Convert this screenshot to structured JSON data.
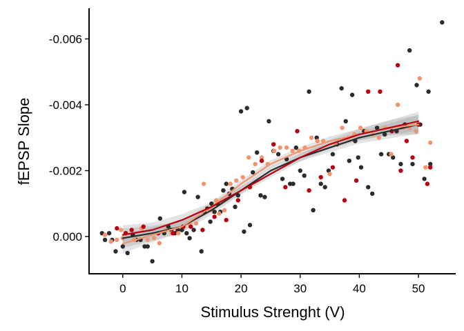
{
  "chart_data": {
    "type": "scatter",
    "title": "",
    "xlabel": "Stimulus Strenght (V)",
    "ylabel": "fEPSP Slope",
    "x_ticks": [
      0,
      10,
      20,
      30,
      40,
      50
    ],
    "x_tick_labels": [
      "0",
      "10",
      "20",
      "30",
      "40",
      "50"
    ],
    "y_ticks": [
      0,
      -0.002,
      -0.004,
      -0.006
    ],
    "y_tick_labels": [
      "0.000",
      "-0.002",
      "-0.004",
      "-0.006"
    ],
    "xlim": [
      -5.7,
      56.3
    ],
    "ylim": [
      0.00113,
      -0.00693
    ],
    "y_reversed": true,
    "grid": false,
    "legend": "none",
    "series": [
      {
        "color": "#2b2b2b",
        "points": [
          [
            -3.5,
            -0.0001
          ],
          [
            -3,
            0.0001
          ],
          [
            -2.3,
            -0.0001
          ],
          [
            -1.8,
            0.0001
          ],
          [
            -1.2,
            0.00045
          ],
          [
            0,
            0.0003
          ],
          [
            0.8,
            0.0005
          ],
          [
            1.7,
            -5e-05
          ],
          [
            2.3,
            0.0001
          ],
          [
            3,
            0.0001
          ],
          [
            3.7,
            0.0003
          ],
          [
            4.2,
            0.0003
          ],
          [
            5,
            0.00075
          ],
          [
            6.3,
            -0.00055
          ],
          [
            7,
            -0.0001
          ],
          [
            7.7,
            -0.0003
          ],
          [
            8.2,
            -0.0002
          ],
          [
            8.8,
            -0.0001
          ],
          [
            9.3,
            -0.0002
          ],
          [
            10,
            -0.0002
          ],
          [
            10.4,
            -0.00135
          ],
          [
            10.8,
            -0.0001
          ],
          [
            11.3,
            5e-05
          ],
          [
            12,
            -0.0002
          ],
          [
            12.7,
            -0.0012
          ],
          [
            13.3,
            0.00045
          ],
          [
            13.8,
            -0.00075
          ],
          [
            14.3,
            -0.00085
          ],
          [
            14.8,
            -0.00045
          ],
          [
            15,
            -0.001
          ],
          [
            15.5,
            -0.00075
          ],
          [
            16,
            -0.001
          ],
          [
            16.5,
            -0.00075
          ],
          [
            17,
            -0.0014
          ],
          [
            17.5,
            -0.0016
          ],
          [
            18,
            -0.0013
          ],
          [
            18.5,
            -0.00145
          ],
          [
            19,
            -0.0009
          ],
          [
            19.5,
            -0.00125
          ],
          [
            20,
            -0.0038
          ],
          [
            20.5,
            -0.00015
          ],
          [
            21,
            -0.0039
          ],
          [
            21.5,
            -0.00035
          ],
          [
            22,
            -0.00195
          ],
          [
            22.7,
            -0.00255
          ],
          [
            23.3,
            -0.00125
          ],
          [
            24,
            -0.0012
          ],
          [
            24.7,
            -0.0035
          ],
          [
            25.5,
            -0.0026
          ],
          [
            26.3,
            -0.0025
          ],
          [
            27,
            -0.00175
          ],
          [
            27.7,
            -0.00235
          ],
          [
            28.3,
            -0.0016
          ],
          [
            28.8,
            -0.0016
          ],
          [
            29.3,
            -0.0027
          ],
          [
            30,
            -0.002
          ],
          [
            30.7,
            -0.00185
          ],
          [
            31.5,
            -0.0044
          ],
          [
            32.2,
            -0.0008
          ],
          [
            32.8,
            -0.003
          ],
          [
            33.5,
            -0.0016
          ],
          [
            34.2,
            -0.0015
          ],
          [
            34.8,
            -0.002
          ],
          [
            35.5,
            -0.0025
          ],
          [
            36.2,
            -0.0028
          ],
          [
            37,
            -0.0045
          ],
          [
            37.7,
            -0.0035
          ],
          [
            38.3,
            -0.0023
          ],
          [
            38.8,
            -0.0043
          ],
          [
            39.3,
            -0.0029
          ],
          [
            39.8,
            -0.0024
          ],
          [
            40.3,
            -0.0021
          ],
          [
            40.8,
            -0.0032
          ],
          [
            41.5,
            -0.0015
          ],
          [
            42.2,
            -0.0013
          ],
          [
            43,
            -0.0033
          ],
          [
            43.7,
            -0.0025
          ],
          [
            44.3,
            -0.0031
          ],
          [
            45,
            -0.0025
          ],
          [
            45.7,
            -0.0024
          ],
          [
            46.3,
            -0.0032
          ],
          [
            47,
            -0.0022
          ],
          [
            47.7,
            -0.0034
          ],
          [
            48.5,
            -0.00565
          ],
          [
            49,
            -0.0022
          ],
          [
            49.7,
            -0.0046
          ],
          [
            50.3,
            -0.0034
          ],
          [
            51,
            -0.00175
          ],
          [
            51.7,
            -0.0044
          ],
          [
            52,
            -0.0022
          ],
          [
            54,
            -0.0065
          ]
        ],
        "trend": [
          [
            0,
            5e-05
          ],
          [
            5,
            -0.0001
          ],
          [
            10,
            -0.0003
          ],
          [
            15,
            -0.0008
          ],
          [
            20,
            -0.0014
          ],
          [
            25,
            -0.002
          ],
          [
            30,
            -0.0024
          ],
          [
            35,
            -0.0027
          ],
          [
            40,
            -0.003
          ],
          [
            45,
            -0.0032
          ],
          [
            50,
            -0.0034
          ]
        ]
      },
      {
        "color": "#f0956e",
        "points": [
          [
            -3,
            -5e-05
          ],
          [
            -2,
            0.00015
          ],
          [
            -1,
            0.0001
          ],
          [
            -0.3,
            -0.0002
          ],
          [
            0,
            5e-05
          ],
          [
            0.5,
            -0.0001
          ],
          [
            2,
            0.0001
          ],
          [
            3.2,
            -0.00025
          ],
          [
            4.2,
            0.0001
          ],
          [
            5.3,
            5e-05
          ],
          [
            6.2,
            0.0002
          ],
          [
            7.3,
            -0.0002
          ],
          [
            8.3,
            -0.0001
          ],
          [
            9.4,
            -0.0001
          ],
          [
            10.3,
            -0.0003
          ],
          [
            11.3,
            -0.0004
          ],
          [
            12.4,
            -0.0004
          ],
          [
            13.7,
            -0.0016
          ],
          [
            14.8,
            -0.0008
          ],
          [
            15.8,
            -0.0011
          ],
          [
            16.3,
            -0.0007
          ],
          [
            17.2,
            -0.0008
          ],
          [
            18.2,
            -0.0016
          ],
          [
            19.2,
            -0.0017
          ],
          [
            20.3,
            -0.0018
          ],
          [
            21.3,
            -0.0024
          ],
          [
            22.4,
            -0.0022
          ],
          [
            23.5,
            -0.0024
          ],
          [
            24.5,
            -0.0022
          ],
          [
            25.6,
            -0.0026
          ],
          [
            26.6,
            -0.0027
          ],
          [
            27.7,
            -0.0027
          ],
          [
            28.7,
            -0.0026
          ],
          [
            29.8,
            -0.0026
          ],
          [
            30.8,
            -0.0027
          ],
          [
            31.9,
            -0.003
          ],
          [
            32.9,
            -0.0029
          ],
          [
            33.9,
            -0.0029
          ],
          [
            35,
            -0.0019
          ],
          [
            36,
            -0.0028
          ],
          [
            37.1,
            -0.0033
          ],
          [
            38.1,
            -0.003
          ],
          [
            39.2,
            -0.0031
          ],
          [
            40.2,
            -0.0033
          ],
          [
            41.2,
            -0.0032
          ],
          [
            42.3,
            -0.0031
          ],
          [
            43.3,
            -0.003
          ],
          [
            44.4,
            -0.0033
          ],
          [
            45.4,
            -0.0025
          ],
          [
            46.5,
            -0.004
          ],
          [
            47.5,
            -0.0033
          ],
          [
            48.5,
            -0.0033
          ],
          [
            49.6,
            -0.0032
          ],
          [
            50.2,
            -0.0048
          ],
          [
            51.2,
            -0.0021
          ],
          [
            52,
            -0.00285
          ]
        ],
        "trend": [
          [
            0,
            0.00022
          ],
          [
            5,
            -5e-05
          ],
          [
            10,
            -0.0003
          ],
          [
            15,
            -0.0009
          ],
          [
            20,
            -0.0016
          ],
          [
            25,
            -0.0022
          ],
          [
            30,
            -0.0026
          ],
          [
            35,
            -0.0029
          ],
          [
            40,
            -0.0031
          ],
          [
            45,
            -0.0033
          ],
          [
            50,
            -0.0034
          ]
        ]
      },
      {
        "color": "#b8000e",
        "points": [
          [
            -1,
            -0.00025
          ],
          [
            0.5,
            -0.0001
          ],
          [
            1.5,
            -0.0002
          ],
          [
            3.5,
            -0.0003
          ],
          [
            6,
            -0.0001
          ],
          [
            8.5,
            -0.0001
          ],
          [
            10.2,
            -0.0003
          ],
          [
            11.5,
            -0.0003
          ],
          [
            13.5,
            -0.0002
          ],
          [
            15.5,
            -0.0006
          ],
          [
            17.5,
            -0.0005
          ],
          [
            19.5,
            -0.0011
          ],
          [
            21.5,
            -0.0015
          ],
          [
            23.5,
            -0.0023
          ],
          [
            25.5,
            -0.0028
          ],
          [
            27.5,
            -0.0015
          ],
          [
            29.5,
            -0.0032
          ],
          [
            31.5,
            -0.0014
          ],
          [
            33.5,
            -0.0018
          ],
          [
            35.5,
            -0.0021
          ],
          [
            37.5,
            -0.0011
          ],
          [
            39.5,
            -0.0017
          ],
          [
            41.5,
            -0.0044
          ],
          [
            43.5,
            -0.0044
          ],
          [
            45.5,
            -0.0032
          ],
          [
            46.5,
            -0.0052
          ],
          [
            47,
            -0.002
          ],
          [
            48,
            -0.0029
          ],
          [
            49,
            -0.0024
          ],
          [
            50,
            -0.0034
          ],
          [
            51.5,
            -0.0016
          ],
          [
            52,
            -0.0021
          ]
        ],
        "trend": [
          [
            0,
            -5e-05
          ],
          [
            5,
            -0.0002
          ],
          [
            10,
            -0.0005
          ],
          [
            15,
            -0.0009
          ],
          [
            20,
            -0.0014
          ],
          [
            25,
            -0.0019
          ],
          [
            30,
            -0.0024
          ],
          [
            35,
            -0.0028
          ],
          [
            40,
            -0.0031
          ],
          [
            45,
            -0.0033
          ],
          [
            50,
            -0.0035
          ]
        ]
      }
    ]
  }
}
